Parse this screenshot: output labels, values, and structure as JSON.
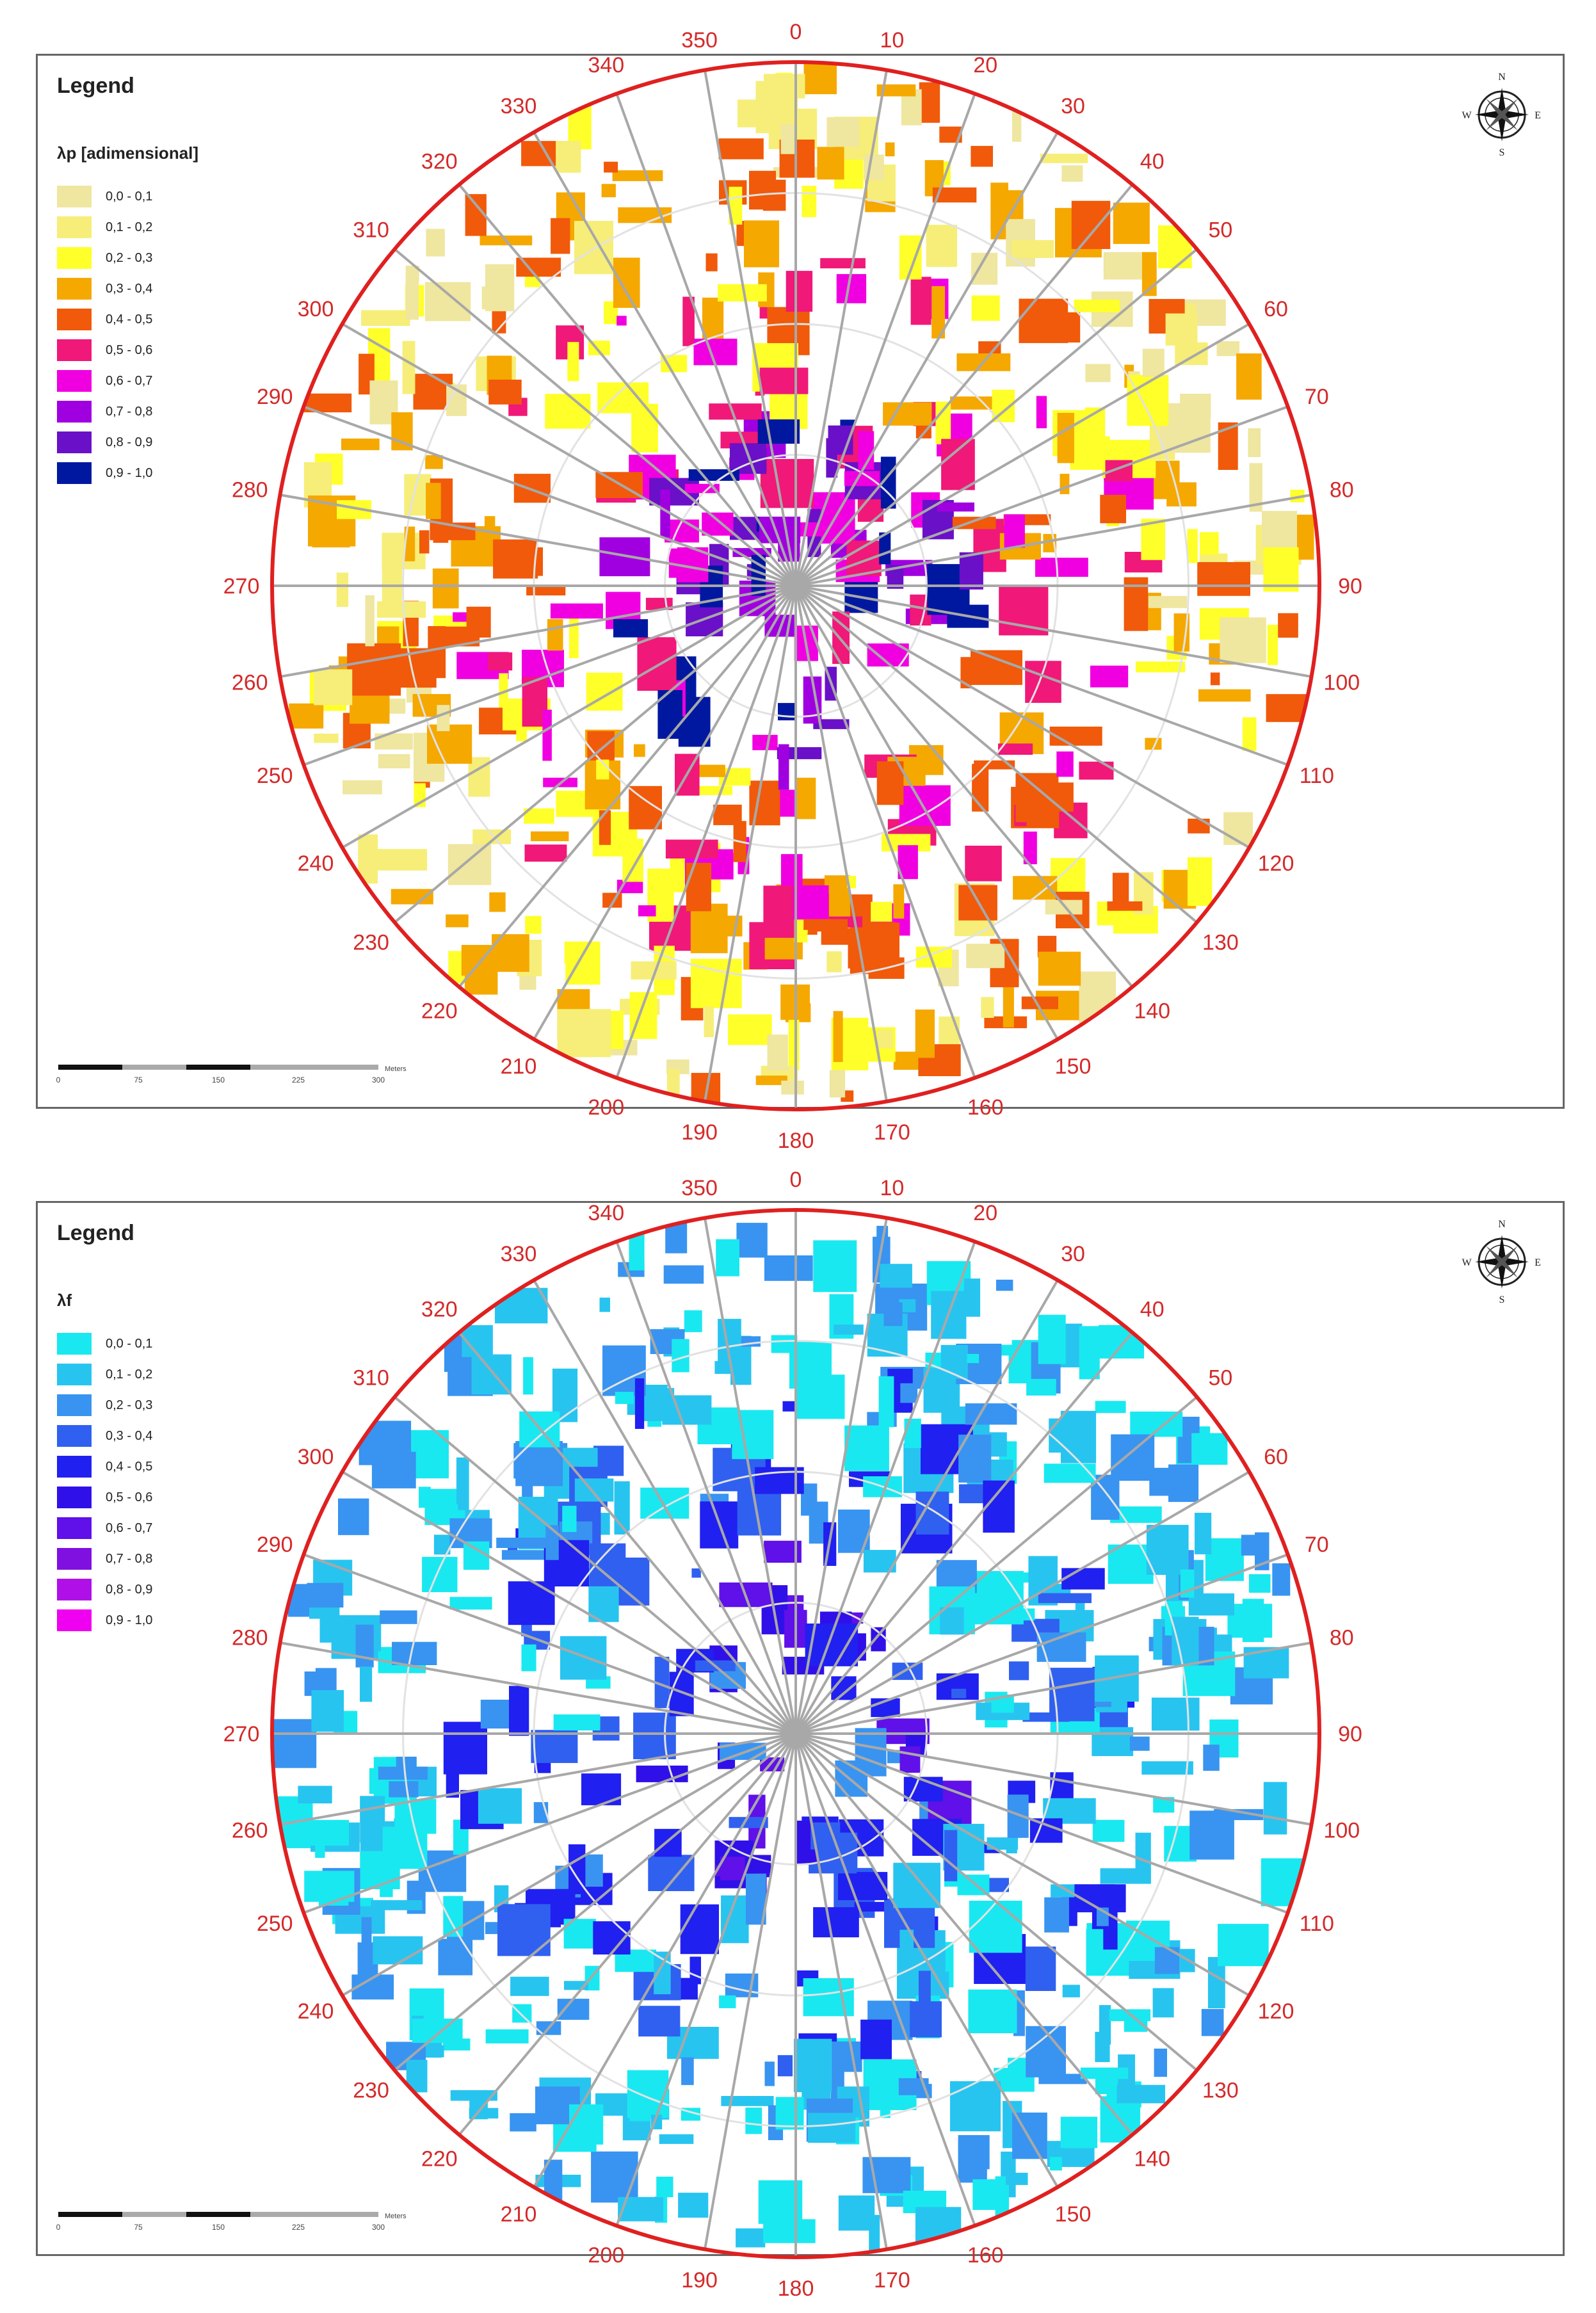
{
  "panels": [
    {
      "id": "top",
      "legend_title": "Legend",
      "variable_label": "λp  [adimensional]",
      "classes": [
        {
          "label": "0,0 - 0,1",
          "color": "#efe6a0"
        },
        {
          "label": "0,1 - 0,2",
          "color": "#f6ee78"
        },
        {
          "label": "0,2 - 0,3",
          "color": "#ffff2a"
        },
        {
          "label": "0,3 - 0,4",
          "color": "#f5a800"
        },
        {
          "label": "0,4 - 0,5",
          "color": "#f05a0a"
        },
        {
          "label": "0,5 - 0,6",
          "color": "#f01878"
        },
        {
          "label": "0,6 - 0,7",
          "color": "#f000e0"
        },
        {
          "label": "0,7 - 0,8",
          "color": "#a000e0"
        },
        {
          "label": "0,8 - 0,9",
          "color": "#6a10c8"
        },
        {
          "label": "0,9 - 1,0",
          "color": "#0018a0"
        }
      ]
    },
    {
      "id": "bottom",
      "legend_title": "Legend",
      "variable_label": "λf",
      "classes": [
        {
          "label": "0,0 - 0,1",
          "color": "#1ae8f0"
        },
        {
          "label": "0,1 - 0,2",
          "color": "#28c4f0"
        },
        {
          "label": "0,2 - 0,3",
          "color": "#3894f0"
        },
        {
          "label": "0,3 - 0,4",
          "color": "#3060f0"
        },
        {
          "label": "0,4 - 0,5",
          "color": "#2020f0"
        },
        {
          "label": "0,5 - 0,6",
          "color": "#3010e8"
        },
        {
          "label": "0,6 - 0,7",
          "color": "#6010e8"
        },
        {
          "label": "0,7 - 0,8",
          "color": "#8010e0"
        },
        {
          "label": "0,8 - 0,9",
          "color": "#b010e8"
        },
        {
          "label": "0,9 - 1,0",
          "color": "#f000f0"
        }
      ]
    }
  ],
  "compass": {
    "n": "N",
    "s": "S",
    "e": "E",
    "w": "W"
  },
  "scale_ticks": [
    "0",
    "75",
    "150",
    "225",
    "300"
  ],
  "scale_unit": "Meters",
  "sector_labels": [
    "0",
    "10",
    "20",
    "30",
    "40",
    "50",
    "60",
    "70",
    "80",
    "90",
    "100",
    "110",
    "120",
    "130",
    "140",
    "150",
    "160",
    "170",
    "180",
    "190",
    "200",
    "210",
    "220",
    "230",
    "240",
    "250",
    "260",
    "270",
    "280",
    "290",
    "300",
    "310",
    "320",
    "330",
    "340",
    "350"
  ],
  "colors": {
    "circle": "#e02020",
    "rays": "#a8a8a8",
    "sector_label": "#d42a2a",
    "ring": "#e2e2e2"
  }
}
